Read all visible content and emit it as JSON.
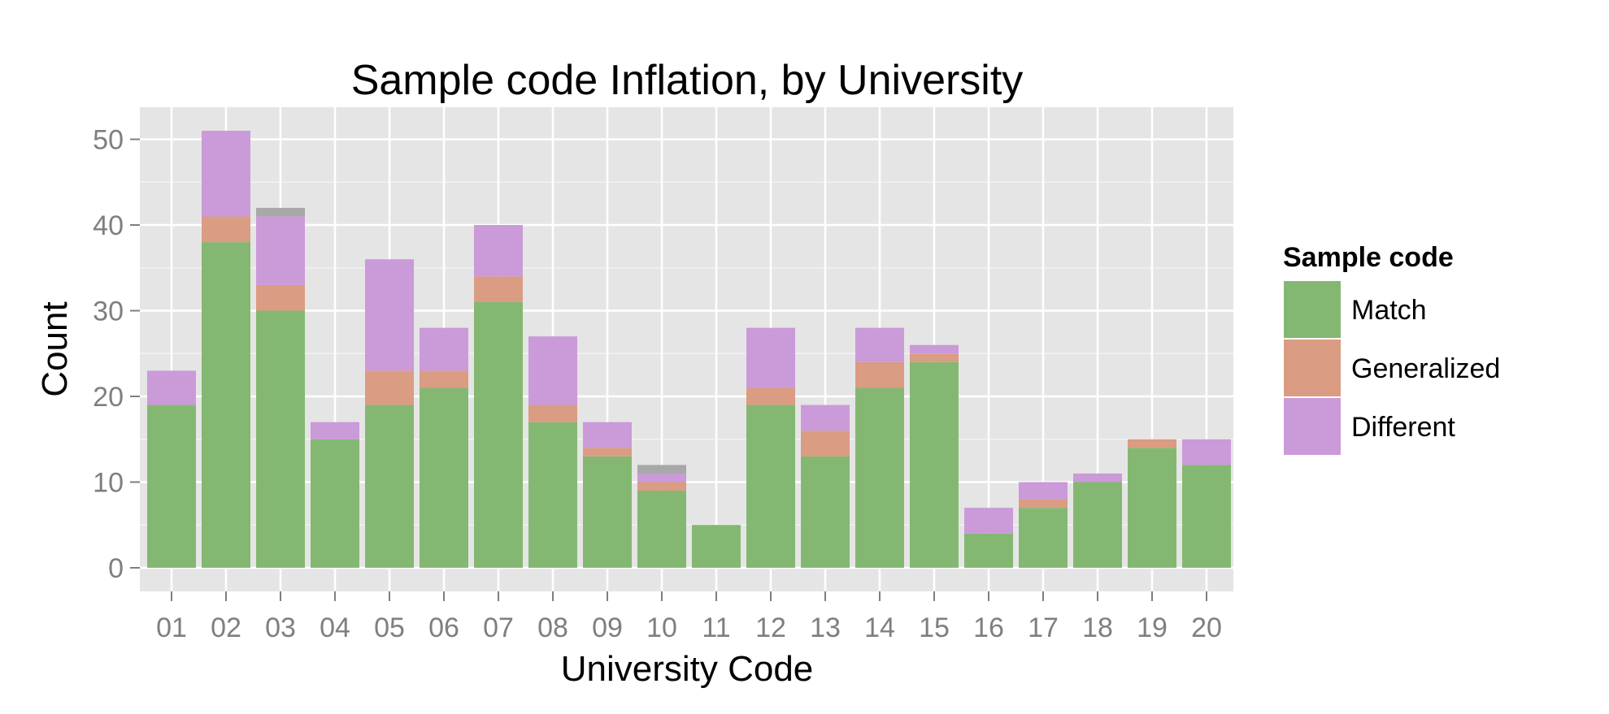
{
  "chart_data": {
    "type": "bar",
    "stacked": true,
    "title": "Sample code Inflation, by University",
    "xlabel": "University Code",
    "ylabel": "Count",
    "ylim": [
      0,
      54
    ],
    "yticks": [
      0,
      10,
      20,
      30,
      40,
      50
    ],
    "grid": true,
    "legend_placement": "right",
    "legend_title": "Sample code",
    "categories": [
      "01",
      "02",
      "03",
      "04",
      "05",
      "06",
      "07",
      "08",
      "09",
      "10",
      "11",
      "12",
      "13",
      "14",
      "15",
      "16",
      "17",
      "18",
      "19",
      "20"
    ],
    "series": [
      {
        "name": "Match",
        "color": "#84b872",
        "values": [
          19,
          38,
          30,
          15,
          19,
          21,
          31,
          17,
          13,
          9,
          5,
          19,
          13,
          21,
          24,
          4,
          7,
          10,
          14,
          12
        ]
      },
      {
        "name": "Generalized",
        "color": "#da9c83",
        "values": [
          0,
          3,
          3,
          0,
          4,
          2,
          3,
          2,
          1,
          1,
          0,
          2,
          3,
          3,
          1,
          0,
          1,
          0,
          1,
          0
        ]
      },
      {
        "name": "Different",
        "color": "#cb9ad8",
        "values": [
          4,
          10,
          8,
          2,
          13,
          5,
          6,
          8,
          3,
          1,
          0,
          7,
          3,
          4,
          1,
          3,
          2,
          1,
          0,
          3
        ]
      },
      {
        "color": "#a8a8a8",
        "values": [
          0,
          0,
          1,
          0,
          0,
          0,
          0,
          0,
          0,
          1,
          0,
          0,
          0,
          0,
          0,
          0,
          0,
          0,
          0,
          0
        ],
        "in_legend": false
      }
    ]
  }
}
